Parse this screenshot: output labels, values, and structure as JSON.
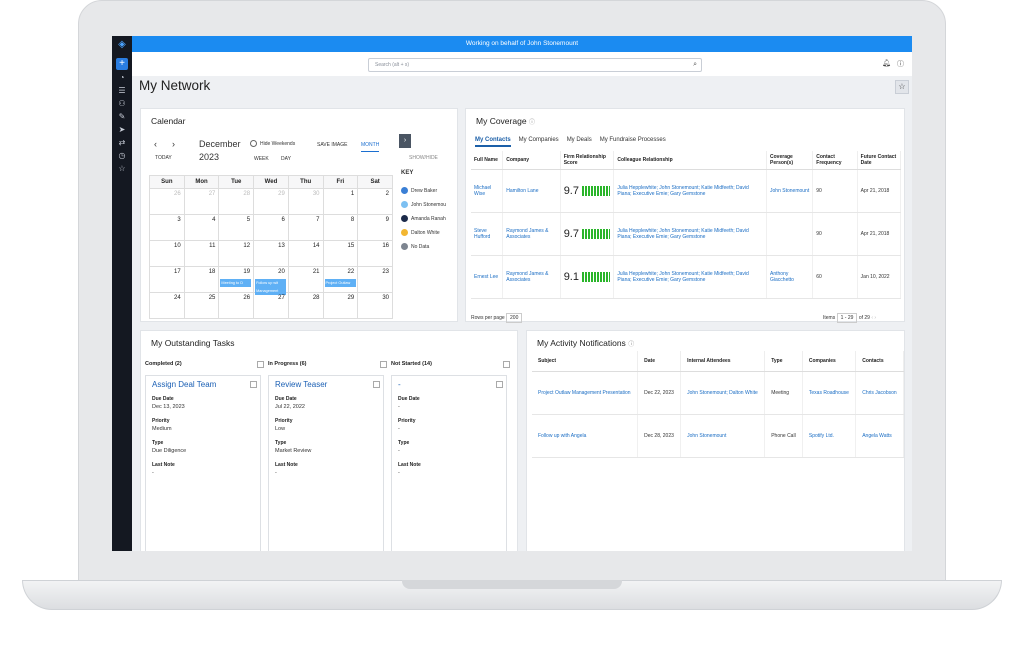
{
  "banner": "Working on behalf of John Stonemount",
  "search": {
    "placeholder": "Search (alt + s)"
  },
  "page_title": "My Network",
  "calendar": {
    "title": "Calendar",
    "month": "December",
    "year": "2023",
    "today": "TODAY",
    "hide_weekends": "Hide Weekends",
    "save_image": "SAVE IMAGE",
    "views": [
      "MONTH",
      "WEEK",
      "DAY"
    ],
    "show_hide": "SHOW/HIDE",
    "key_title": "KEY",
    "weekdays": [
      "Sun",
      "Mon",
      "Tue",
      "Wed",
      "Thu",
      "Fri",
      "Sat"
    ],
    "weeks": [
      [
        {
          "d": "26",
          "dim": true
        },
        {
          "d": "27",
          "dim": true
        },
        {
          "d": "28",
          "dim": true
        },
        {
          "d": "29",
          "dim": true
        },
        {
          "d": "30",
          "dim": true
        },
        {
          "d": "1"
        },
        {
          "d": "2"
        }
      ],
      [
        {
          "d": "3"
        },
        {
          "d": "4"
        },
        {
          "d": "5"
        },
        {
          "d": "6"
        },
        {
          "d": "7"
        },
        {
          "d": "8"
        },
        {
          "d": "9"
        }
      ],
      [
        {
          "d": "10"
        },
        {
          "d": "11"
        },
        {
          "d": "12"
        },
        {
          "d": "13"
        },
        {
          "d": "14"
        },
        {
          "d": "15"
        },
        {
          "d": "16"
        }
      ],
      [
        {
          "d": "17"
        },
        {
          "d": "18"
        },
        {
          "d": "19",
          "events": [
            "Meeting to D"
          ]
        },
        {
          "d": "20",
          "events": [
            "Follow up wit",
            "Management"
          ]
        },
        {
          "d": "21"
        },
        {
          "d": "22",
          "events": [
            "Project Outlaw"
          ]
        },
        {
          "d": "23"
        }
      ],
      [
        {
          "d": "24"
        },
        {
          "d": "25"
        },
        {
          "d": "26"
        },
        {
          "d": "27"
        },
        {
          "d": "28"
        },
        {
          "d": "29"
        },
        {
          "d": "30"
        }
      ]
    ],
    "key": [
      {
        "name": "Drew Baker",
        "color": "#3a7fd5"
      },
      {
        "name": "John Stonemou",
        "color": "#7cc0f2"
      },
      {
        "name": "Amanda Ranah",
        "color": "#1c2a4a"
      },
      {
        "name": "Dalton White",
        "color": "#f2b632"
      },
      {
        "name": "No Data",
        "color": "#7d8590"
      }
    ]
  },
  "coverage": {
    "title": "My Coverage",
    "tabs": [
      "My Contacts",
      "My Companies",
      "My Deals",
      "My Fundraise Processes"
    ],
    "columns": [
      "Full Name",
      "Company",
      "Firm Relationship Score",
      "Colleague Relationship",
      "Coverage Person(s)",
      "Contact Frequency",
      "Future Contact Date"
    ],
    "rows": [
      {
        "name": "Michael Wise",
        "company": "Hamilton Lane",
        "score": "9.7",
        "colleagues": "Julia Hepplewhite; John Stonemount; Katie Midfeeth; David Piana; Executive Emie; Gary Gemstone",
        "coverage": "John Stonemount",
        "freq": "90",
        "date": "Apr 21, 2018"
      },
      {
        "name": "Steve Hufford",
        "company": "Raymond James & Associates",
        "score": "9.7",
        "colleagues": "Julia Hepplewhite; John Stonemount; Katie Midfeeth; David Piana; Executive Emie; Gary Gemstone",
        "coverage": "",
        "freq": "90",
        "date": "Apr 21, 2018"
      },
      {
        "name": "Ernest Lee",
        "company": "Raymond James & Associates",
        "score": "9.1",
        "colleagues": "Julia Hepplewhite; John Stonemount; Katie Midfeeth; David Piana; Executive Emie; Gary Gemstone",
        "coverage": "Anthony Giacchetto",
        "freq": "60",
        "date": "Jan 10, 2022"
      }
    ],
    "rows_per_page_label": "Rows per page",
    "rows_per_page": "200",
    "items_label": "Items",
    "items_range": "1 - 29",
    "items_total": "of 29"
  },
  "tasks": {
    "title": "My Outstanding Tasks",
    "columns": [
      {
        "header": "Completed (2)",
        "title": "Assign Deal Team",
        "due": "Dec 13, 2023",
        "priority": "Medium",
        "type": "Due Diligence",
        "last_note": "-"
      },
      {
        "header": "In Progress (6)",
        "title": "Review Teaser",
        "due": "Jul 22, 2022",
        "priority": "Low",
        "type": "Market Review",
        "last_note": "-"
      },
      {
        "header": "Not Started (14)",
        "title": "-",
        "due": "-",
        "priority": "-",
        "type": "-",
        "last_note": "-"
      }
    ],
    "labels": {
      "due": "Due Date",
      "priority": "Priority",
      "type": "Type",
      "last_note": "Last Note"
    }
  },
  "activity": {
    "title": "My Activity Notifications",
    "columns": [
      "Subject",
      "Date",
      "Internal Attendees",
      "Type",
      "Companies",
      "Contacts"
    ],
    "rows": [
      {
        "subject": "Project Outlaw Management Presentation",
        "date": "Dec 22, 2023",
        "attendees": "John Stonemount; Dalton White",
        "type": "Meeting",
        "companies": "Texas Roadhouse",
        "contacts": "Chris Jacobson"
      },
      {
        "subject": "Follow up with Angela",
        "date": "Dec 28, 2023",
        "attendees": "John Stonemount",
        "type": "Phone Call",
        "companies": "Spotify Ltd.",
        "contacts": "Angela Watts"
      }
    ]
  }
}
